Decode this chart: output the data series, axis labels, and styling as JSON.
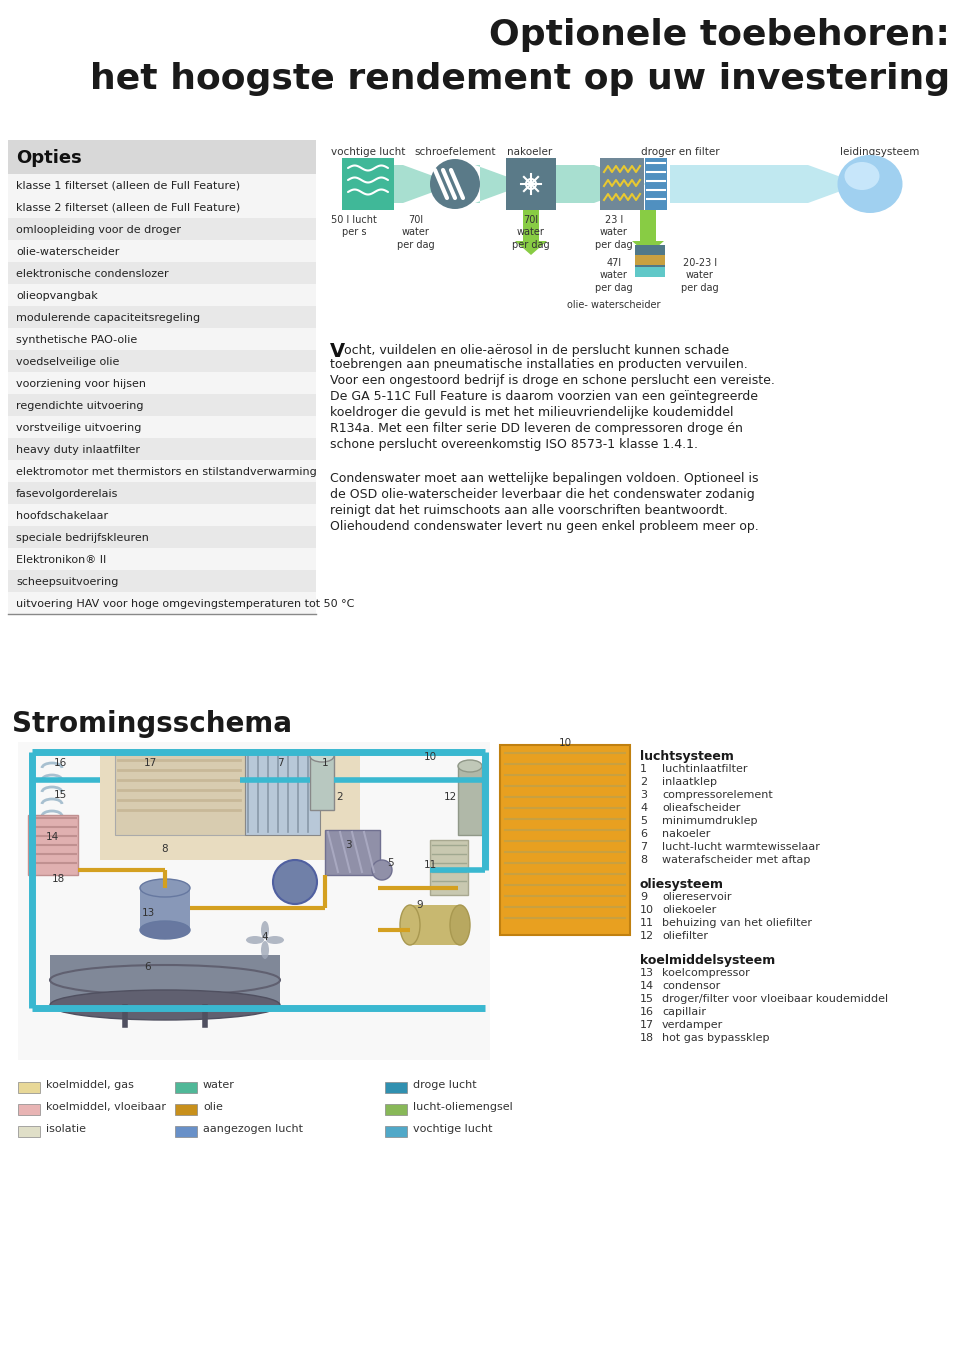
{
  "title_line1": "Optionele toebehoren:",
  "title_line2": "het hoogste rendement op uw investering",
  "bg_color": "#ffffff",
  "opties_label": "Opties",
  "rows": [
    {
      "text": "klasse 1 filterset (alleen de Full Feature)",
      "shaded": false
    },
    {
      "text": "klasse 2 filterset (alleen de Full Feature)",
      "shaded": false
    },
    {
      "text": "omloopleiding voor de droger",
      "shaded": true
    },
    {
      "text": "olie-waterscheider",
      "shaded": false
    },
    {
      "text": "elektronische condenslozer",
      "shaded": true
    },
    {
      "text": "olieopvangbak",
      "shaded": false
    },
    {
      "text": "modulerende capaciteitsregeling",
      "shaded": true
    },
    {
      "text": "synthetische PAO-olie",
      "shaded": false
    },
    {
      "text": "voedselveilige olie",
      "shaded": true
    },
    {
      "text": "voorziening voor hijsen",
      "shaded": false
    },
    {
      "text": "regendichte uitvoering",
      "shaded": true
    },
    {
      "text": "vorstveilige uitvoering",
      "shaded": false
    },
    {
      "text": "heavy duty inlaatfilter",
      "shaded": true
    },
    {
      "text": "elektromotor met thermistors en stilstandverwarming",
      "shaded": false
    },
    {
      "text": "fasevolgorderelais",
      "shaded": true
    },
    {
      "text": "hoofdschakelaar",
      "shaded": false
    },
    {
      "text": "speciale bedrijfskleuren",
      "shaded": true
    },
    {
      "text": "Elektronikon® II",
      "shaded": false
    },
    {
      "text": "scheepsuitvoering",
      "shaded": true
    },
    {
      "text": "uitvoering HAV voor hoge omgevingstemperaturen tot 50 °C",
      "shaded": false
    }
  ],
  "stromings_title": "Stromingsschema",
  "legend_items": [
    {
      "color": "#e8d898",
      "label": "koelmiddel, gas"
    },
    {
      "color": "#e8b4b4",
      "label": "koelmiddel, vloeibaar"
    },
    {
      "color": "#e0dfc8",
      "label": "isolatie"
    },
    {
      "color": "#50b898",
      "label": "water"
    },
    {
      "color": "#c8901c",
      "label": "olie"
    },
    {
      "color": "#6890c8",
      "label": "aangezogen lucht"
    },
    {
      "color": "#3090b0",
      "label": "droge lucht"
    },
    {
      "color": "#88b858",
      "label": "lucht-oliemengsel"
    },
    {
      "color": "#50a8c8",
      "label": "vochtige lucht"
    }
  ],
  "right_legend_title1": "luchtsysteem",
  "right_legend_items1": [
    [
      "1",
      "luchtinlaatfilter"
    ],
    [
      "2",
      "inlaatklep"
    ],
    [
      "3",
      "compressorelement"
    ],
    [
      "4",
      "olieafscheider"
    ],
    [
      "5",
      "minimumdruklep"
    ],
    [
      "6",
      "nakoeler"
    ],
    [
      "7",
      "lucht-lucht warmtewisselaar"
    ],
    [
      "8",
      "waterafscheider met aftap"
    ]
  ],
  "right_legend_title2": "oliesysteem",
  "right_legend_items2": [
    [
      "9",
      "oliereservoir"
    ],
    [
      "10",
      "oliekoeler"
    ],
    [
      "11",
      "behuizing van het oliefilter"
    ],
    [
      "12",
      "oliefilter"
    ]
  ],
  "right_legend_title3": "koelmiddelsysteem",
  "right_legend_items3": [
    [
      "13",
      "koelcompressor"
    ],
    [
      "14",
      "condensor"
    ],
    [
      "15",
      "droger/filter voor vloeibaar koudemiddel"
    ],
    [
      "16",
      "capillair"
    ],
    [
      "17",
      "verdamper"
    ],
    [
      "18",
      "hot gas bypassklep"
    ]
  ]
}
